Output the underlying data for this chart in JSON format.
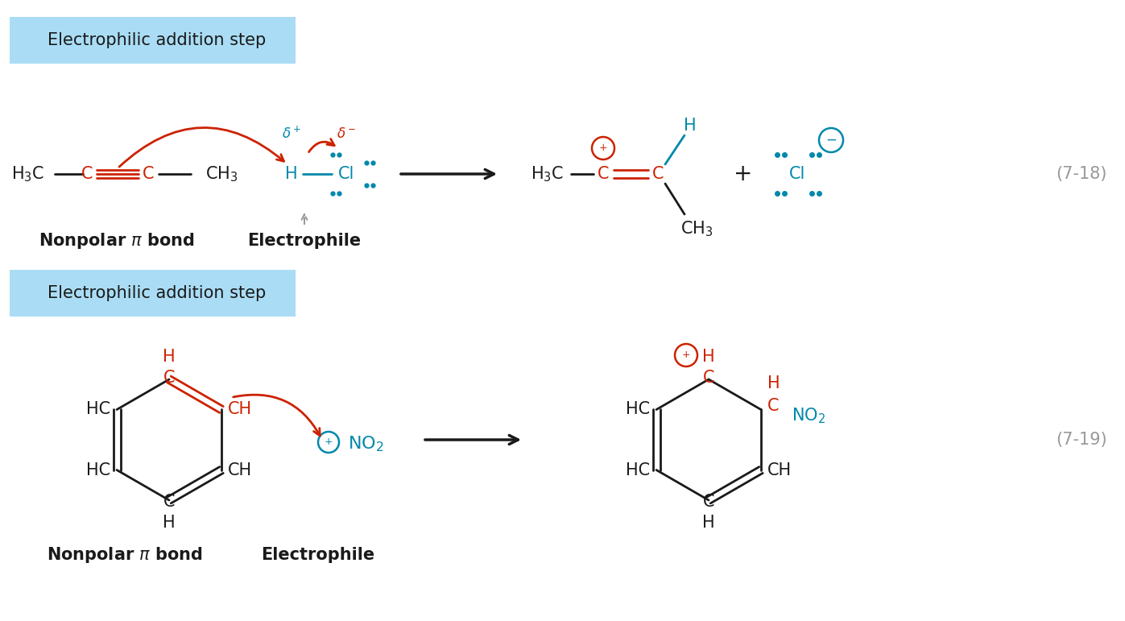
{
  "bg_color": "#ffffff",
  "box_color": "#aaddf5",
  "black": "#1a1a1a",
  "red": "#cc2200",
  "teal": "#0088aa",
  "gray": "#999999",
  "title1": "Electrophilic addition step",
  "title2": "Electrophilic addition step",
  "rxn_num1": "(7-18)",
  "rxn_num2": "(7-19)"
}
